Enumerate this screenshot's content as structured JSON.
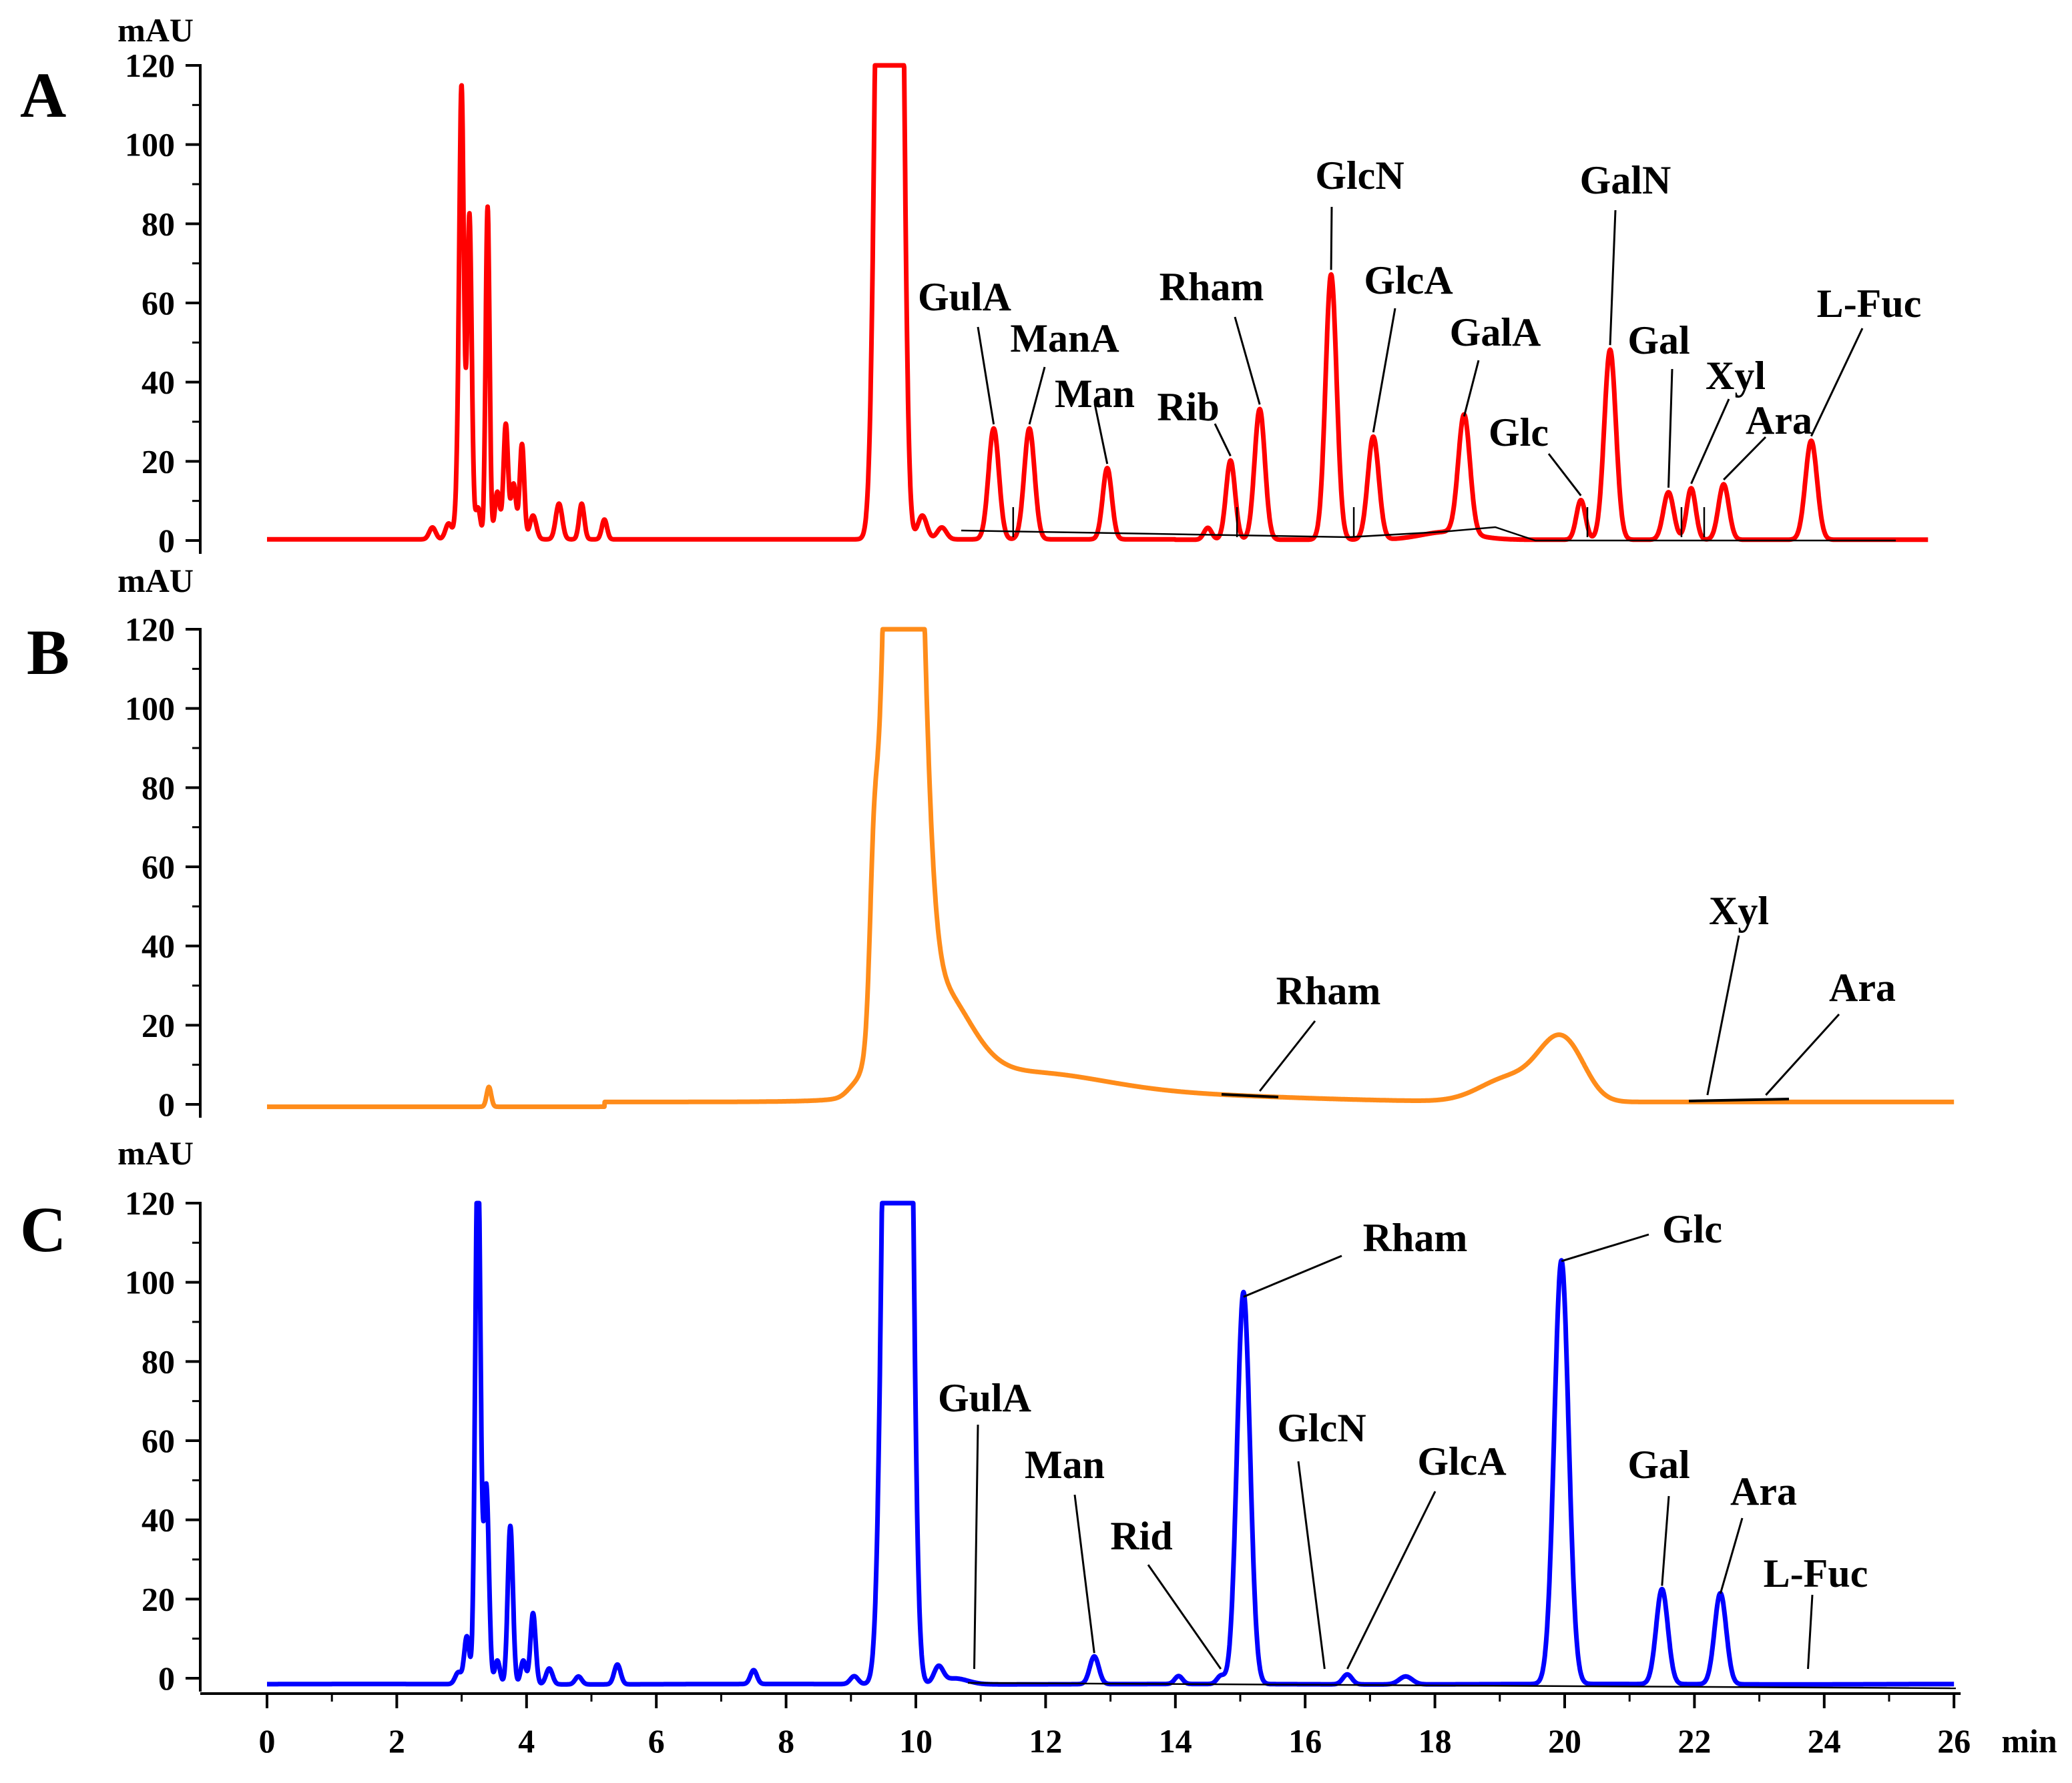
{
  "chart_data": [
    {
      "type": "line",
      "panel": "A",
      "color": "#ff0000",
      "ylabel": "mAU",
      "xlabel": "min",
      "xlim": [
        0,
        26
      ],
      "ylim": [
        0,
        120
      ],
      "y_ticks": [
        0,
        20,
        40,
        60,
        80,
        100,
        120
      ],
      "annotations": [
        {
          "label": "GulA",
          "x": 11.2,
          "y": 28
        },
        {
          "label": "ManA",
          "x": 11.75,
          "y": 28
        },
        {
          "label": "Man",
          "x": 12.95,
          "y": 18
        },
        {
          "label": "Rib",
          "x": 14.85,
          "y": 20
        },
        {
          "label": "Rham",
          "x": 15.3,
          "y": 33
        },
        {
          "label": "GlcN",
          "x": 16.4,
          "y": 67
        },
        {
          "label": "GlcA",
          "x": 17.05,
          "y": 26
        },
        {
          "label": "GalA",
          "x": 18.45,
          "y": 30
        },
        {
          "label": "Glc",
          "x": 20.25,
          "y": 10
        },
        {
          "label": "GalN",
          "x": 20.7,
          "y": 48
        },
        {
          "label": "Gal",
          "x": 21.6,
          "y": 12
        },
        {
          "label": "Xyl",
          "x": 21.95,
          "y": 13
        },
        {
          "label": "Ara",
          "x": 22.45,
          "y": 14
        },
        {
          "label": "L-Fuc",
          "x": 23.8,
          "y": 25
        }
      ]
    },
    {
      "type": "line",
      "panel": "B",
      "color": "#ff8c1a",
      "ylabel": "mAU",
      "xlabel": "min",
      "xlim": [
        0,
        26
      ],
      "ylim": [
        0,
        120
      ],
      "y_ticks": [
        0,
        20,
        40,
        60,
        80,
        100,
        120
      ],
      "annotations": [
        {
          "label": "Rham",
          "x": 15.3,
          "y": 2
        },
        {
          "label": "Xyl",
          "x": 22.2,
          "y": 1
        },
        {
          "label": "Ara",
          "x": 23.1,
          "y": 1
        }
      ]
    },
    {
      "type": "line",
      "panel": "C",
      "color": "#0000ff",
      "ylabel": "mAU",
      "xlabel": "min",
      "xlim": [
        0,
        26
      ],
      "ylim": [
        0,
        120
      ],
      "y_ticks": [
        0,
        20,
        40,
        60,
        80,
        100,
        120
      ],
      "x_ticks": [
        0,
        2,
        4,
        6,
        8,
        10,
        12,
        14,
        16,
        18,
        20,
        22,
        24,
        26
      ],
      "annotations": [
        {
          "label": "GulA",
          "x": 10.9,
          "y": 1
        },
        {
          "label": "Man",
          "x": 12.75,
          "y": 5
        },
        {
          "label": "Rid",
          "x": 14.7,
          "y": 1
        },
        {
          "label": "Rham",
          "x": 15.05,
          "y": 95
        },
        {
          "label": "GlcN",
          "x": 16.3,
          "y": 1
        },
        {
          "label": "GlcA",
          "x": 16.65,
          "y": 1
        },
        {
          "label": "Glc",
          "x": 19.95,
          "y": 104
        },
        {
          "label": "Gal",
          "x": 21.5,
          "y": 22
        },
        {
          "label": "Ara",
          "x": 22.4,
          "y": 20
        },
        {
          "label": "L-Fuc",
          "x": 23.75,
          "y": 1
        }
      ]
    }
  ]
}
